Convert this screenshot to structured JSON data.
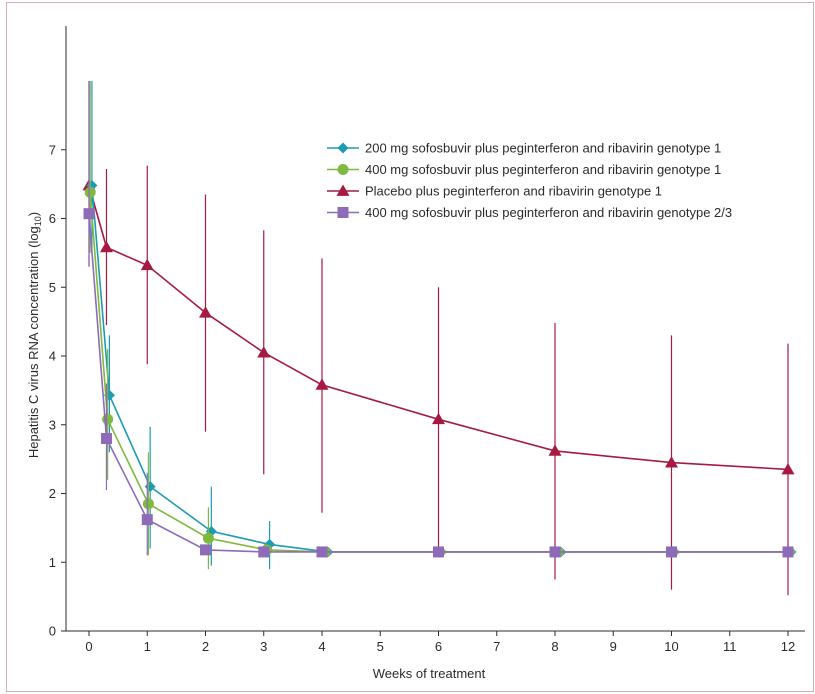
{
  "chart_data": {
    "type": "line",
    "title": "",
    "xlabel": "Weeks of treatment",
    "ylabel_main": "Hepatitis C virus RNA concentration (log",
    "ylabel_sub": "10",
    "ylabel_close": ")",
    "xlim": [
      -0.1,
      12.2
    ],
    "ylim": [
      0,
      8
    ],
    "xticks": [
      0,
      1,
      2,
      3,
      4,
      5,
      6,
      7,
      8,
      9,
      10,
      11,
      12
    ],
    "yticks": [
      0,
      1,
      2,
      3,
      4,
      5,
      6,
      7
    ],
    "grid": false,
    "legend_position": "top-right",
    "series": [
      {
        "name": "200 mg sofosbuvir plus peginterferon and ribavirin genotype 1",
        "color": "#1d9bb5",
        "marker": "diamond",
        "x": [
          0.05,
          0.35,
          1.05,
          2.1,
          3.1,
          4.1,
          6.05,
          8.1,
          10.05,
          12.05
        ],
        "y": [
          6.48,
          3.43,
          2.1,
          1.45,
          1.26,
          1.15,
          1.15,
          1.15,
          1.15,
          1.15
        ],
        "err_low": [
          5.5,
          2.6,
          1.2,
          0.95,
          0.9,
          null,
          null,
          null,
          null,
          null
        ],
        "err_high": [
          8.0,
          4.3,
          2.97,
          2.1,
          1.6,
          null,
          null,
          null,
          null,
          null
        ]
      },
      {
        "name": "400 mg sofosbuvir plus peginterferon and ribavirin genotype 1",
        "color": "#7fb93f",
        "marker": "circle",
        "x": [
          0.02,
          0.32,
          1.02,
          2.05,
          3.05,
          4.05,
          6.02,
          8.05,
          10.02,
          12.02
        ],
        "y": [
          6.38,
          3.08,
          1.85,
          1.35,
          1.18,
          1.15,
          1.15,
          1.15,
          1.15,
          1.15
        ],
        "err_low": [
          5.5,
          2.2,
          1.1,
          0.9,
          null,
          null,
          null,
          null,
          null,
          null
        ],
        "err_high": [
          8.0,
          4.1,
          2.6,
          1.8,
          null,
          null,
          null,
          null,
          null,
          null
        ]
      },
      {
        "name": "Placebo plus peginterferon and ribavirin genotype 1",
        "color": "#a61a42",
        "marker": "triangle",
        "x": [
          0.0,
          0.3,
          1.0,
          2.0,
          3.0,
          4.0,
          6.0,
          8.0,
          10.0,
          12.0
        ],
        "y": [
          6.48,
          5.58,
          5.32,
          4.63,
          4.05,
          3.58,
          3.08,
          2.62,
          2.45,
          2.35
        ],
        "err_low": [
          5.3,
          4.45,
          3.88,
          2.9,
          2.28,
          1.72,
          1.15,
          0.75,
          0.6,
          0.52
        ],
        "err_high": [
          8.0,
          6.72,
          6.77,
          6.35,
          5.83,
          5.42,
          5.0,
          4.48,
          4.3,
          4.18
        ]
      },
      {
        "name": "400 mg sofosbuvir plus peginterferon and ribavirin genotype 2/3",
        "color": "#8e6bb8",
        "marker": "square",
        "x": [
          0.0,
          0.3,
          1.0,
          2.0,
          3.0,
          4.0,
          6.0,
          8.0,
          10.0,
          12.0
        ],
        "y": [
          6.07,
          2.8,
          1.62,
          1.18,
          1.15,
          1.15,
          1.15,
          1.15,
          1.15,
          1.15
        ],
        "err_low": [
          5.3,
          2.05,
          1.1,
          null,
          null,
          null,
          null,
          null,
          null,
          null
        ],
        "err_high": [
          8.0,
          3.6,
          2.3,
          null,
          null,
          null,
          null,
          null,
          null,
          null
        ]
      }
    ]
  }
}
